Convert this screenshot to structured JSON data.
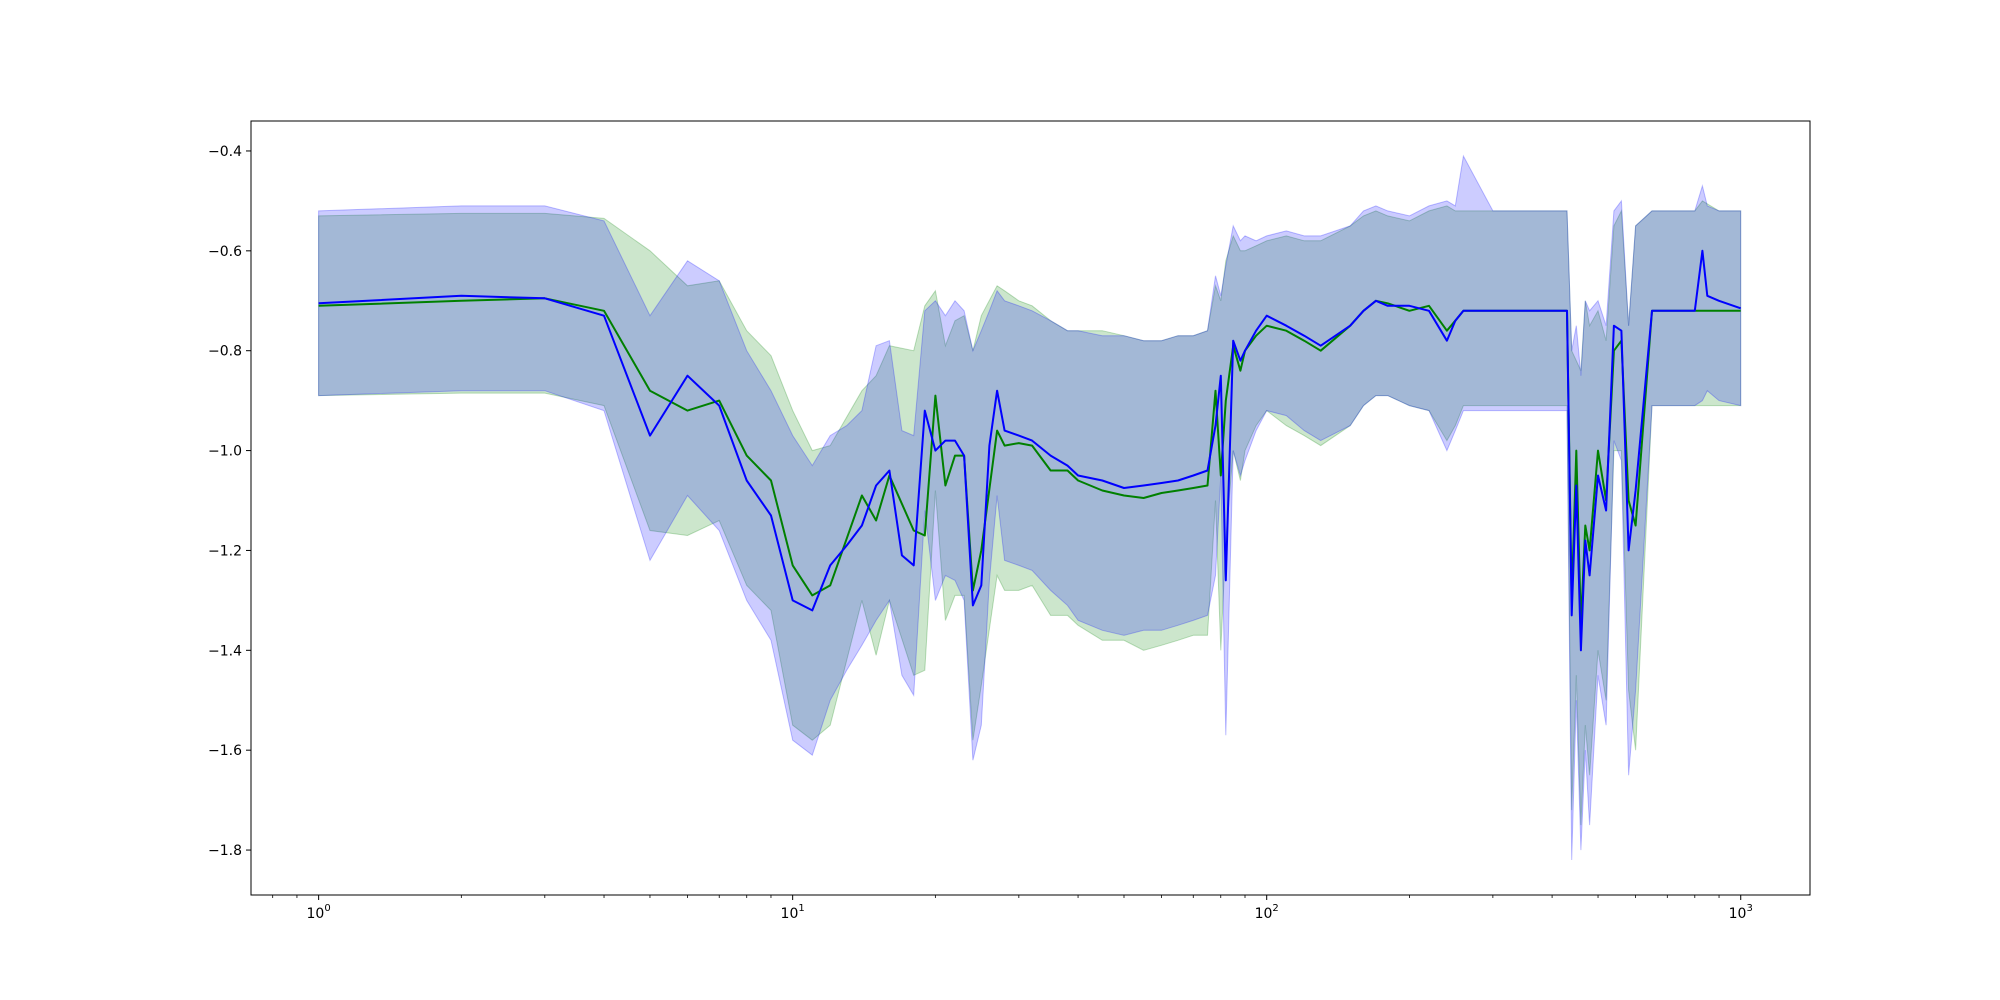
{
  "chart_data": {
    "type": "line",
    "title": "",
    "xlabel": "",
    "ylabel": "",
    "x_scale": "log",
    "xlim": [
      0.72,
      1400
    ],
    "ylim": [
      -1.89,
      -0.34
    ],
    "grid": false,
    "legend": "none",
    "x_ticks": [
      {
        "value": 1,
        "base": "10",
        "exp": "0"
      },
      {
        "value": 10,
        "base": "10",
        "exp": "1"
      },
      {
        "value": 100,
        "base": "10",
        "exp": "2"
      },
      {
        "value": 1000,
        "base": "10",
        "exp": "3"
      }
    ],
    "y_ticks": [
      {
        "value": -0.4,
        "label": "−0.4"
      },
      {
        "value": -0.6,
        "label": "−0.6"
      },
      {
        "value": -0.8,
        "label": "−0.8"
      },
      {
        "value": -1.0,
        "label": "−1.0"
      },
      {
        "value": -1.2,
        "label": "−1.2"
      },
      {
        "value": -1.4,
        "label": "−1.4"
      },
      {
        "value": -1.6,
        "label": "−1.6"
      },
      {
        "value": -1.8,
        "label": "−1.8"
      }
    ],
    "series": [
      {
        "color": "#008000",
        "band_color": "#008000",
        "x": [
          1,
          2,
          3,
          4,
          5,
          6,
          7,
          8,
          9,
          10,
          11,
          12,
          14,
          15,
          16,
          18,
          19,
          20,
          21,
          22,
          23,
          24,
          25,
          27,
          28,
          30,
          32,
          35,
          38,
          40,
          45,
          50,
          55,
          60,
          65,
          70,
          75,
          78,
          80,
          82,
          85,
          88,
          90,
          95,
          100,
          110,
          120,
          130,
          150,
          160,
          170,
          180,
          200,
          220,
          240,
          250,
          260,
          300,
          430,
          440,
          450,
          460,
          470,
          480,
          500,
          520,
          540,
          560,
          580,
          600,
          650,
          800,
          830,
          900,
          1000
        ],
        "mean": [
          -0.71,
          -0.7,
          -0.695,
          -0.72,
          -0.88,
          -0.92,
          -0.9,
          -1.01,
          -1.06,
          -1.23,
          -1.29,
          -1.27,
          -1.09,
          -1.14,
          -1.05,
          -1.16,
          -1.17,
          -0.89,
          -1.07,
          -1.01,
          -1.01,
          -1.28,
          -1.2,
          -0.96,
          -0.99,
          -0.985,
          -0.99,
          -1.04,
          -1.04,
          -1.06,
          -1.08,
          -1.09,
          -1.095,
          -1.085,
          -1.08,
          -1.075,
          -1.07,
          -0.88,
          -1.05,
          -0.9,
          -0.79,
          -0.84,
          -0.8,
          -0.77,
          -0.75,
          -0.76,
          -0.78,
          -0.8,
          -0.75,
          -0.72,
          -0.7,
          -0.705,
          -0.72,
          -0.71,
          -0.76,
          -0.74,
          -0.72,
          -0.72,
          -0.72,
          -1.3,
          -1.0,
          -1.35,
          -1.15,
          -1.2,
          -1.0,
          -1.1,
          -0.8,
          -0.78,
          -1.1,
          -1.15,
          -0.72,
          -0.72,
          -0.72,
          -0.72,
          -0.72
        ],
        "upper": [
          -0.53,
          -0.525,
          -0.525,
          -0.535,
          -0.6,
          -0.67,
          -0.66,
          -0.76,
          -0.81,
          -0.92,
          -1.0,
          -0.99,
          -0.88,
          -0.85,
          -0.79,
          -0.8,
          -0.71,
          -0.68,
          -0.79,
          -0.74,
          -0.73,
          -0.8,
          -0.73,
          -0.67,
          -0.68,
          -0.7,
          -0.71,
          -0.74,
          -0.76,
          -0.76,
          -0.76,
          -0.77,
          -0.78,
          -0.78,
          -0.77,
          -0.77,
          -0.76,
          -0.67,
          -0.7,
          -0.62,
          -0.57,
          -0.6,
          -0.6,
          -0.59,
          -0.58,
          -0.57,
          -0.58,
          -0.58,
          -0.55,
          -0.53,
          -0.52,
          -0.53,
          -0.54,
          -0.52,
          -0.51,
          -0.52,
          -0.52,
          -0.52,
          -0.52,
          -0.8,
          -0.82,
          -0.84,
          -0.7,
          -0.75,
          -0.72,
          -0.78,
          -0.55,
          -0.52,
          -0.75,
          -0.55,
          -0.52,
          -0.52,
          -0.5,
          -0.52,
          -0.52
        ],
        "lower": [
          -0.89,
          -0.885,
          -0.885,
          -0.91,
          -1.16,
          -1.17,
          -1.14,
          -1.27,
          -1.32,
          -1.55,
          -1.58,
          -1.55,
          -1.3,
          -1.41,
          -1.3,
          -1.45,
          -1.44,
          -1.08,
          -1.34,
          -1.29,
          -1.29,
          -1.58,
          -1.47,
          -1.25,
          -1.28,
          -1.28,
          -1.27,
          -1.33,
          -1.33,
          -1.35,
          -1.38,
          -1.38,
          -1.4,
          -1.39,
          -1.38,
          -1.37,
          -1.37,
          -1.1,
          -1.4,
          -1.18,
          -1.0,
          -1.06,
          -1.0,
          -0.95,
          -0.92,
          -0.95,
          -0.97,
          -0.99,
          -0.95,
          -0.91,
          -0.89,
          -0.89,
          -0.91,
          -0.92,
          -0.98,
          -0.95,
          -0.91,
          -0.91,
          -0.91,
          -1.72,
          -1.45,
          -1.75,
          -1.55,
          -1.65,
          -1.4,
          -1.5,
          -1.0,
          -1.0,
          -1.48,
          -1.6,
          -0.91,
          -0.91,
          -0.91,
          -0.91,
          -0.91
        ]
      },
      {
        "color": "#0000ff",
        "band_color": "#0000ff",
        "x": [
          1,
          2,
          3,
          4,
          5,
          6,
          7,
          8,
          9,
          10,
          11,
          12,
          13,
          14,
          15,
          16,
          17,
          18,
          19,
          20,
          21,
          22,
          23,
          24,
          25,
          26,
          27,
          28,
          30,
          32,
          35,
          38,
          40,
          45,
          50,
          55,
          60,
          65,
          70,
          75,
          78,
          80,
          82,
          85,
          88,
          90,
          95,
          100,
          110,
          120,
          130,
          150,
          160,
          170,
          180,
          200,
          220,
          240,
          250,
          260,
          300,
          430,
          440,
          450,
          460,
          470,
          480,
          500,
          520,
          540,
          560,
          580,
          600,
          650,
          800,
          830,
          850,
          900,
          1000
        ],
        "mean": [
          -0.705,
          -0.69,
          -0.695,
          -0.73,
          -0.97,
          -0.85,
          -0.91,
          -1.06,
          -1.13,
          -1.3,
          -1.32,
          -1.23,
          -1.19,
          -1.15,
          -1.07,
          -1.04,
          -1.21,
          -1.23,
          -0.92,
          -1.0,
          -0.98,
          -0.98,
          -1.01,
          -1.31,
          -1.27,
          -0.99,
          -0.88,
          -0.96,
          -0.97,
          -0.98,
          -1.01,
          -1.03,
          -1.05,
          -1.06,
          -1.075,
          -1.07,
          -1.065,
          -1.06,
          -1.05,
          -1.04,
          -0.95,
          -0.85,
          -1.26,
          -0.78,
          -0.82,
          -0.8,
          -0.76,
          -0.73,
          -0.75,
          -0.77,
          -0.79,
          -0.75,
          -0.72,
          -0.7,
          -0.71,
          -0.71,
          -0.72,
          -0.78,
          -0.74,
          -0.72,
          -0.72,
          -0.72,
          -1.33,
          -1.07,
          -1.4,
          -1.18,
          -1.25,
          -1.05,
          -1.12,
          -0.75,
          -0.76,
          -1.2,
          -1.08,
          -0.72,
          -0.72,
          -0.6,
          -0.69,
          -0.7,
          -0.715
        ],
        "upper": [
          -0.52,
          -0.51,
          -0.51,
          -0.54,
          -0.73,
          -0.62,
          -0.66,
          -0.8,
          -0.88,
          -0.97,
          -1.03,
          -0.97,
          -0.95,
          -0.92,
          -0.79,
          -0.78,
          -0.96,
          -0.97,
          -0.72,
          -0.7,
          -0.73,
          -0.7,
          -0.72,
          -0.8,
          -0.76,
          -0.72,
          -0.68,
          -0.7,
          -0.71,
          -0.72,
          -0.74,
          -0.76,
          -0.76,
          -0.77,
          -0.77,
          -0.78,
          -0.78,
          -0.77,
          -0.77,
          -0.76,
          -0.65,
          -0.69,
          -0.63,
          -0.55,
          -0.58,
          -0.57,
          -0.58,
          -0.57,
          -0.56,
          -0.57,
          -0.57,
          -0.55,
          -0.52,
          -0.51,
          -0.52,
          -0.53,
          -0.51,
          -0.5,
          -0.51,
          -0.41,
          -0.52,
          -0.52,
          -0.8,
          -0.75,
          -0.85,
          -0.7,
          -0.72,
          -0.7,
          -0.75,
          -0.52,
          -0.5,
          -0.75,
          -0.55,
          -0.52,
          -0.52,
          -0.47,
          -0.51,
          -0.52,
          -0.52
        ],
        "lower": [
          -0.89,
          -0.88,
          -0.88,
          -0.92,
          -1.22,
          -1.09,
          -1.16,
          -1.3,
          -1.38,
          -1.58,
          -1.61,
          -1.5,
          -1.44,
          -1.39,
          -1.34,
          -1.3,
          -1.45,
          -1.49,
          -1.12,
          -1.3,
          -1.25,
          -1.26,
          -1.3,
          -1.62,
          -1.55,
          -1.26,
          -1.09,
          -1.22,
          -1.23,
          -1.24,
          -1.28,
          -1.31,
          -1.34,
          -1.36,
          -1.37,
          -1.36,
          -1.36,
          -1.35,
          -1.34,
          -1.33,
          -1.25,
          -1.05,
          -1.57,
          -1.0,
          -1.05,
          -1.02,
          -0.96,
          -0.92,
          -0.93,
          -0.96,
          -0.98,
          -0.95,
          -0.91,
          -0.89,
          -0.89,
          -0.91,
          -0.92,
          -1.0,
          -0.96,
          -0.92,
          -0.92,
          -0.92,
          -1.82,
          -1.5,
          -1.8,
          -1.6,
          -1.75,
          -1.45,
          -1.55,
          -0.98,
          -1.02,
          -1.65,
          -1.48,
          -0.91,
          -0.91,
          -0.9,
          -0.88,
          -0.9,
          -0.91
        ]
      }
    ]
  }
}
